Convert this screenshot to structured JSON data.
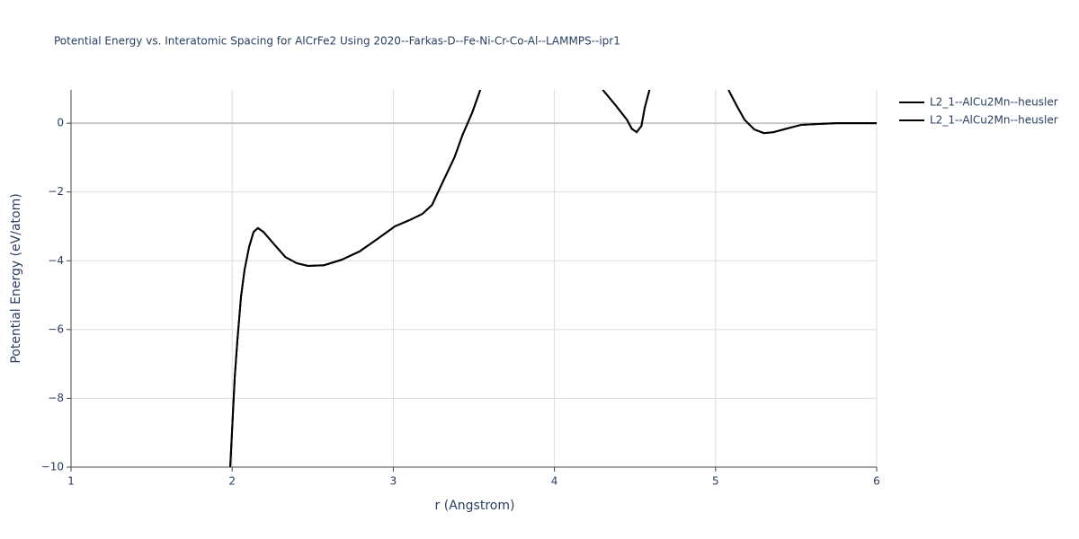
{
  "chart_data": {
    "type": "line",
    "title": "Potential Energy vs. Interatomic Spacing for AlCrFe2 Using 2020--Farkas-D--Fe-Ni-Cr-Co-Al--LAMMPS--ipr1",
    "x_label": "r (Angstrom)",
    "y_label": "Potential Energy (eV/atom)",
    "xlim": [
      1,
      6
    ],
    "xticks": [
      1,
      2,
      3,
      4,
      5,
      6
    ],
    "ylim": [
      -10,
      0.97
    ],
    "yticks": [
      {
        "value": -10,
        "label": "−10"
      },
      {
        "value": -8,
        "label": "−8"
      },
      {
        "value": -6,
        "label": "−6"
      },
      {
        "value": -4,
        "label": "−4"
      },
      {
        "value": -2,
        "label": "−2"
      },
      0
    ],
    "grid": true,
    "legend": "right",
    "series": [
      {
        "name": "L2_1--AlCu2Mn--heusler",
        "color": "#000000",
        "x": [
          1.988,
          2.016,
          2.032,
          2.055,
          2.077,
          2.105,
          2.133,
          2.16,
          2.194,
          2.26,
          2.33,
          2.4,
          2.47,
          2.57,
          2.68,
          2.79,
          2.9,
          3.01,
          3.1,
          3.18,
          3.24,
          3.3,
          3.38,
          3.43,
          3.49,
          3.54,
          4.0,
          4.3,
          4.38,
          4.45,
          4.48,
          4.51,
          4.54,
          4.56,
          4.59,
          4.8,
          5.08,
          5.13,
          5.18,
          5.24,
          5.3,
          5.36,
          5.44,
          5.53,
          5.61,
          5.75,
          6.0
        ],
        "values": [
          -10,
          -7.39,
          -6.34,
          -5.04,
          -4.26,
          -3.6,
          -3.16,
          -3.05,
          -3.16,
          -3.52,
          -3.89,
          -4.07,
          -4.15,
          -4.13,
          -3.97,
          -3.73,
          -3.37,
          -3.0,
          -2.82,
          -2.64,
          -2.38,
          -1.78,
          -0.99,
          -0.34,
          0.31,
          0.97,
          null,
          0.97,
          0.52,
          0.1,
          -0.16,
          -0.26,
          -0.08,
          0.44,
          0.97,
          null,
          0.97,
          0.52,
          0.1,
          -0.18,
          -0.29,
          -0.26,
          -0.16,
          -0.05,
          -0.03,
          0,
          0
        ]
      },
      {
        "name": "L2_1--AlCu2Mn--heusler",
        "color": "#000000",
        "x": [
          1.988,
          2.016,
          2.032,
          2.055,
          2.077,
          2.105,
          2.133,
          2.16,
          2.194,
          2.26,
          2.33,
          2.4,
          2.47,
          2.57,
          2.68,
          2.79,
          2.9,
          3.01,
          3.1,
          3.18,
          3.24,
          3.3,
          3.38,
          3.43,
          3.49,
          3.54,
          4.0,
          4.3,
          4.38,
          4.45,
          4.48,
          4.51,
          4.54,
          4.56,
          4.59,
          4.8,
          5.08,
          5.13,
          5.18,
          5.24,
          5.3,
          5.36,
          5.44,
          5.53,
          5.61,
          5.75,
          6.0
        ],
        "values": [
          -10,
          -7.39,
          -6.34,
          -5.04,
          -4.26,
          -3.6,
          -3.16,
          -3.05,
          -3.16,
          -3.52,
          -3.89,
          -4.07,
          -4.15,
          -4.13,
          -3.97,
          -3.73,
          -3.37,
          -3.0,
          -2.82,
          -2.64,
          -2.38,
          -1.78,
          -0.99,
          -0.34,
          0.31,
          0.97,
          null,
          0.97,
          0.52,
          0.1,
          -0.16,
          -0.26,
          -0.08,
          0.44,
          0.97,
          null,
          0.97,
          0.52,
          0.1,
          -0.18,
          -0.29,
          -0.26,
          -0.16,
          -0.05,
          -0.03,
          0,
          0
        ]
      }
    ]
  }
}
